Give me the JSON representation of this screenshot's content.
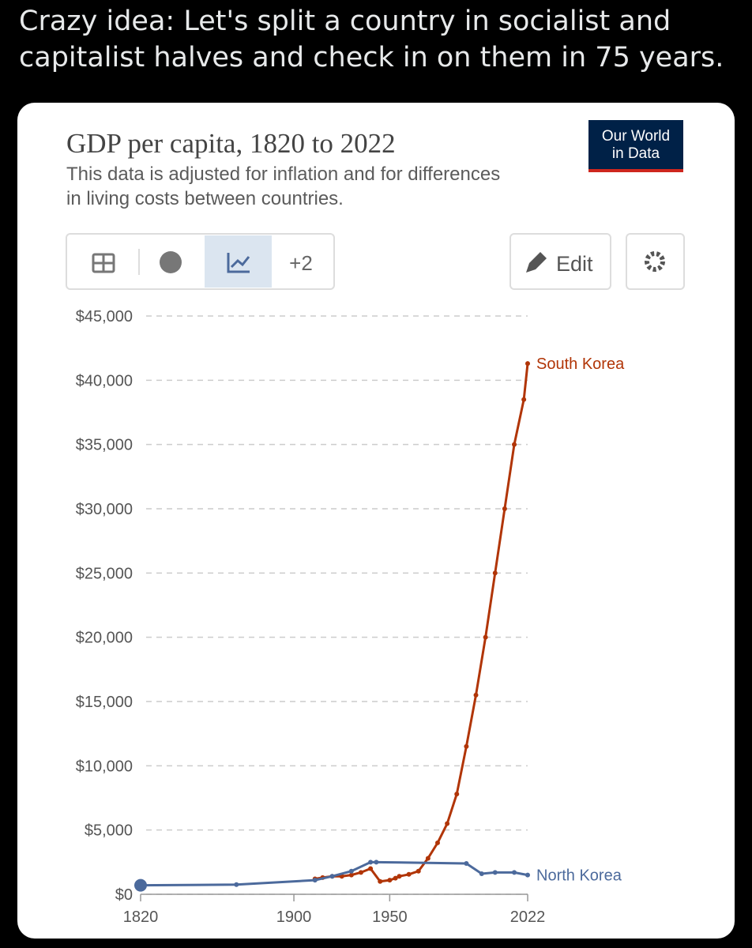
{
  "post": {
    "text": "Crazy idea: Let's split a country in socialist and capitalist halves and check in on them in 75 years."
  },
  "logo": {
    "line1": "Our World",
    "line2": "in Data"
  },
  "controls": {
    "more": "+2",
    "edit": "Edit"
  },
  "chart_data": {
    "type": "line",
    "title": "GDP per capita, 1820 to 2022",
    "subtitle": "This data is adjusted for inflation and for differences in living costs between countries.",
    "xlim": [
      1820,
      2022
    ],
    "xticks": [
      1820,
      1900,
      1950,
      2022
    ],
    "ylim": [
      0,
      45000
    ],
    "yticks": [
      {
        "value": 0,
        "label": "$0"
      },
      {
        "value": 5000,
        "label": "$5,000"
      },
      {
        "value": 10000,
        "label": "$10,000"
      },
      {
        "value": 15000,
        "label": "$15,000"
      },
      {
        "value": 20000,
        "label": "$20,000"
      },
      {
        "value": 25000,
        "label": "$25,000"
      },
      {
        "value": 30000,
        "label": "$30,000"
      },
      {
        "value": 35000,
        "label": "$35,000"
      },
      {
        "value": 40000,
        "label": "$40,000"
      },
      {
        "value": 45000,
        "label": "$45,000"
      }
    ],
    "grid": true,
    "series": [
      {
        "name": "South Korea",
        "color": "#b13507",
        "x": [
          1911,
          1915,
          1920,
          1925,
          1930,
          1935,
          1940,
          1945,
          1950,
          1953,
          1955,
          1960,
          1965,
          1970,
          1975,
          1980,
          1985,
          1990,
          1995,
          2000,
          2005,
          2010,
          2015,
          2020,
          2022
        ],
        "values": [
          1200,
          1300,
          1400,
          1400,
          1500,
          1700,
          2000,
          1000,
          1100,
          1250,
          1400,
          1550,
          1800,
          2800,
          4000,
          5500,
          7800,
          11500,
          15500,
          20000,
          25000,
          30000,
          35000,
          38500,
          41300
        ]
      },
      {
        "name": "North Korea",
        "color": "#4c6a9c",
        "x": [
          1820,
          1870,
          1911,
          1920,
          1930,
          1940,
          1943,
          1990,
          1998,
          2005,
          2015,
          2022
        ],
        "values": [
          700,
          750,
          1100,
          1400,
          1800,
          2500,
          2500,
          2400,
          1600,
          1700,
          1700,
          1500
        ]
      }
    ]
  }
}
